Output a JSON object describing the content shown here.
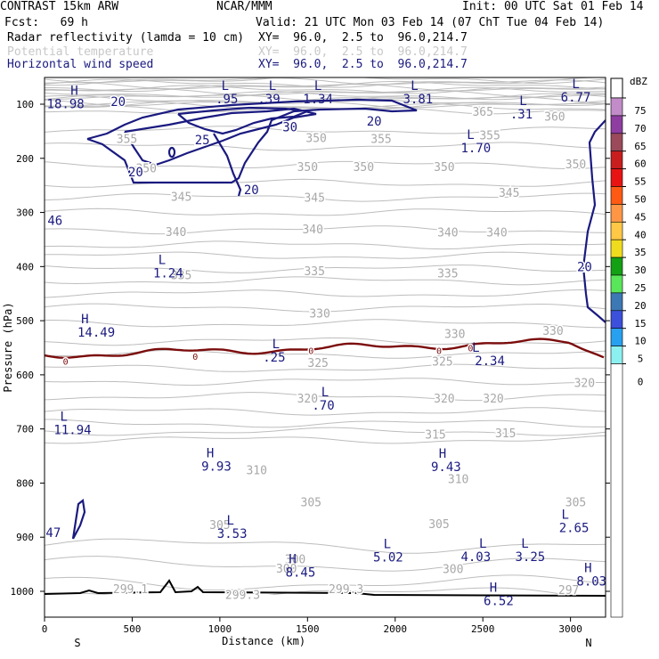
{
  "header": {
    "model": "CONTRAST 15km ARW",
    "org": "NCAR/MMM",
    "init": "Init: 00 UTC Sat 01 Feb 14",
    "fcst": "Fcst:   69 h",
    "valid": "Valid: 21 UTC Mon 03 Feb 14 (07 ChT Tue 04 Feb 14)",
    "fields": [
      {
        "name": "Radar reflectivity (lamda = 10 cm)",
        "xy": "XY=  96.0,  2.5 to  96.0,214.7",
        "color": "#000000"
      },
      {
        "name": "Potential temperature",
        "xy": "XY=  96.0,  2.5 to  96.0,214.7",
        "color": "#bdbdbd"
      },
      {
        "name": "Horizontal wind speed",
        "xy": "XY=  96.0,  2.5 to  96.0,214.7",
        "color": "#1a1a80"
      }
    ]
  },
  "chart_data": {
    "type": "contour",
    "xlabel": "Distance (km)",
    "ylabel": "Pressure (hPa)",
    "xlim": [
      0,
      3200
    ],
    "ylim": [
      1050,
      60
    ],
    "xticks": [
      0,
      500,
      1000,
      1500,
      2000,
      2500,
      3000
    ],
    "yticks": [
      100,
      200,
      300,
      400,
      500,
      600,
      700,
      800,
      900,
      1000
    ],
    "x_end_labels": {
      "left": "S",
      "right": "N"
    },
    "colorbar": {
      "unit": "dBZ",
      "levels": [
        75,
        70,
        65,
        60,
        55,
        50,
        45,
        40,
        35,
        30,
        25,
        20,
        15,
        10,
        5,
        0
      ],
      "colors": [
        "#c28cc8",
        "#8e3ea0",
        "#9a4a5a",
        "#c81e1e",
        "#e81414",
        "#ff5a14",
        "#ff9646",
        "#ffc846",
        "#f0dc1e",
        "#14a014",
        "#5ae65a",
        "#3c78b4",
        "#3c50dc",
        "#28a0f0",
        "#8cf0f0",
        "#ffffff"
      ]
    },
    "theta_labels": [
      {
        "x": 2500,
        "p": 113,
        "v": "365"
      },
      {
        "x": 2910,
        "p": 122,
        "v": "360"
      },
      {
        "x": 470,
        "p": 163,
        "v": "355"
      },
      {
        "x": 1550,
        "p": 162,
        "v": "350"
      },
      {
        "x": 1920,
        "p": 163,
        "v": "355"
      },
      {
        "x": 2540,
        "p": 157,
        "v": "355"
      },
      {
        "x": 580,
        "p": 218,
        "v": "350"
      },
      {
        "x": 1500,
        "p": 215,
        "v": "350"
      },
      {
        "x": 1820,
        "p": 215,
        "v": "350"
      },
      {
        "x": 2280,
        "p": 215,
        "v": "350"
      },
      {
        "x": 3030,
        "p": 210,
        "v": "350"
      },
      {
        "x": 780,
        "p": 270,
        "v": "345"
      },
      {
        "x": 1540,
        "p": 272,
        "v": "345"
      },
      {
        "x": 2650,
        "p": 263,
        "v": "345"
      },
      {
        "x": 750,
        "p": 335,
        "v": "340"
      },
      {
        "x": 1530,
        "p": 330,
        "v": "340"
      },
      {
        "x": 2300,
        "p": 336,
        "v": "340"
      },
      {
        "x": 2580,
        "p": 336,
        "v": "340"
      },
      {
        "x": 780,
        "p": 415,
        "v": "335"
      },
      {
        "x": 1540,
        "p": 408,
        "v": "335"
      },
      {
        "x": 2300,
        "p": 412,
        "v": "335"
      },
      {
        "x": 1570,
        "p": 486,
        "v": "330"
      },
      {
        "x": 2340,
        "p": 524,
        "v": "330"
      },
      {
        "x": 2900,
        "p": 518,
        "v": "330"
      },
      {
        "x": 1560,
        "p": 577,
        "v": "325"
      },
      {
        "x": 2270,
        "p": 575,
        "v": "325"
      },
      {
        "x": 3080,
        "p": 614,
        "v": "320"
      },
      {
        "x": 1500,
        "p": 643,
        "v": "320"
      },
      {
        "x": 2280,
        "p": 643,
        "v": "320"
      },
      {
        "x": 2560,
        "p": 643,
        "v": "320"
      },
      {
        "x": 2230,
        "p": 710,
        "v": "315"
      },
      {
        "x": 2630,
        "p": 707,
        "v": "315"
      },
      {
        "x": 1210,
        "p": 775,
        "v": "310"
      },
      {
        "x": 2360,
        "p": 792,
        "v": "310"
      },
      {
        "x": 1520,
        "p": 835,
        "v": "305"
      },
      {
        "x": 3030,
        "p": 835,
        "v": "305"
      },
      {
        "x": 1000,
        "p": 877,
        "v": "305"
      },
      {
        "x": 2250,
        "p": 875,
        "v": "305"
      },
      {
        "x": 1430,
        "p": 940,
        "v": "300"
      },
      {
        "x": 1380,
        "p": 957,
        "v": "300"
      },
      {
        "x": 2330,
        "p": 958,
        "v": "300"
      },
      {
        "x": 490,
        "p": 995,
        "v": "299.1"
      },
      {
        "x": 1130,
        "p": 1006,
        "v": "299.3"
      },
      {
        "x": 1720,
        "p": 995,
        "v": "299.3"
      },
      {
        "x": 2990,
        "p": 997,
        "v": "297"
      }
    ],
    "wind_labels": [
      {
        "x": 420,
        "p": 95,
        "v": "20"
      },
      {
        "x": 1400,
        "p": 142,
        "v": "30"
      },
      {
        "x": 900,
        "p": 166,
        "v": "25"
      },
      {
        "x": 520,
        "p": 225,
        "v": "20"
      },
      {
        "x": 1180,
        "p": 258,
        "v": "20"
      },
      {
        "x": 1880,
        "p": 131,
        "v": "20"
      },
      {
        "x": 3080,
        "p": 400,
        "v": "20"
      }
    ],
    "wind_extrema": [
      {
        "x": 170,
        "p": 83,
        "type": "H",
        "value": "18.98",
        "vx": 120
      },
      {
        "x": 1030,
        "p": 74,
        "type": "L",
        "value": ".95",
        "vx": 1040
      },
      {
        "x": 1300,
        "p": 74,
        "type": "L",
        "value": ".39",
        "vx": 1280
      },
      {
        "x": 1560,
        "p": 74,
        "type": "L",
        "value": "1.34",
        "vx": 1560
      },
      {
        "x": 2110,
        "p": 74,
        "type": "L",
        "value": "3.81",
        "vx": 2130
      },
      {
        "x": 3030,
        "p": 70,
        "type": "L",
        "value": "6.77",
        "vx": 3030
      },
      {
        "x": 2730,
        "p": 102,
        "type": "L",
        "value": ".31",
        "vx": 2720
      },
      {
        "x": 2430,
        "p": 164,
        "type": "L",
        "value": "1.70",
        "vx": 2460
      },
      {
        "x": 15,
        "p": 298,
        "type": "",
        "value": "46",
        "vx": 60
      },
      {
        "x": 670,
        "p": 395,
        "type": "L",
        "value": "1.24",
        "vx": 705
      },
      {
        "x": 230,
        "p": 505,
        "type": "H",
        "value": "14.49",
        "vx": 295
      },
      {
        "x": 1320,
        "p": 551,
        "type": "L",
        "value": ".25",
        "vx": 1310
      },
      {
        "x": 2460,
        "p": 557,
        "type": "L",
        "value": "2.34",
        "vx": 2540
      },
      {
        "x": 1600,
        "p": 640,
        "type": "L",
        "value": ".70",
        "vx": 1590
      },
      {
        "x": 110,
        "p": 685,
        "type": "L",
        "value": "11.94",
        "vx": 160
      },
      {
        "x": 945,
        "p": 752,
        "type": "H",
        "value": "9.93",
        "vx": 980
      },
      {
        "x": 2270,
        "p": 753,
        "type": "H",
        "value": "9.43",
        "vx": 2290
      },
      {
        "x": 15,
        "p": 875,
        "type": "",
        "value": "47",
        "vx": 50
      },
      {
        "x": 1060,
        "p": 877,
        "type": "L",
        "value": "3.53",
        "vx": 1070
      },
      {
        "x": 1415,
        "p": 948,
        "type": "H",
        "value": "8.45",
        "vx": 1460
      },
      {
        "x": 1955,
        "p": 920,
        "type": "L",
        "value": "5.02",
        "vx": 1960
      },
      {
        "x": 2500,
        "p": 919,
        "type": "L",
        "value": "4.03",
        "vx": 2460
      },
      {
        "x": 2740,
        "p": 919,
        "type": "L",
        "value": "3.25",
        "vx": 2770
      },
      {
        "x": 2970,
        "p": 866,
        "type": "L",
        "value": "2.65",
        "vx": 3020
      },
      {
        "x": 3100,
        "p": 965,
        "type": "H",
        "value": "8.03",
        "vx": 3120
      },
      {
        "x": 2560,
        "p": 1001,
        "type": "H",
        "value": "6.52",
        "vx": 2590
      }
    ],
    "freezing_labels": [
      {
        "x": 120,
        "p": 575,
        "v": "0"
      },
      {
        "x": 860,
        "p": 566,
        "v": "0"
      },
      {
        "x": 1520,
        "p": 555,
        "v": "0"
      },
      {
        "x": 2250,
        "p": 555,
        "v": "0"
      },
      {
        "x": 2430,
        "p": 550,
        "v": "0"
      }
    ]
  }
}
